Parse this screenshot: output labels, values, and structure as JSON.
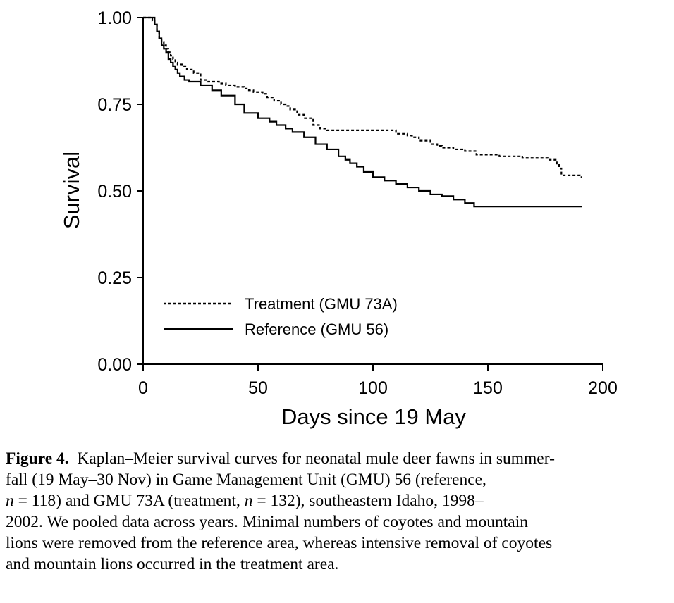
{
  "chart_data": {
    "type": "line",
    "step": true,
    "xlabel": "Days since 19 May",
    "ylabel": "Survival",
    "xlim": [
      0,
      200
    ],
    "ylim": [
      0,
      1
    ],
    "x_ticks": [
      0,
      50,
      100,
      150,
      200
    ],
    "x_tick_labels": [
      "0",
      "50",
      "100",
      "150",
      "200"
    ],
    "y_ticks": [
      0,
      0.25,
      0.5,
      0.75,
      1
    ],
    "y_tick_labels": [
      "0.00",
      "0.25",
      "0.50",
      "0.75",
      "1.00"
    ],
    "grid": false,
    "legend_position": "bottom-left",
    "series": [
      {
        "name": "Treatment (GMU 73A)",
        "style": "dashed",
        "color": "#000000",
        "x": [
          0,
          4,
          5,
          6,
          7,
          8,
          9,
          10,
          11,
          12,
          13,
          14,
          15,
          17,
          19,
          22,
          25,
          28,
          33,
          36,
          40,
          44,
          46,
          48,
          52,
          54,
          57,
          60,
          62,
          64,
          67,
          70,
          74,
          77,
          80,
          95,
          110,
          115,
          117,
          120,
          125,
          128,
          130,
          135,
          140,
          145,
          155,
          165,
          176,
          180,
          181,
          182,
          190,
          191
        ],
        "y": [
          1.0,
          0.99,
          0.98,
          0.96,
          0.94,
          0.93,
          0.92,
          0.91,
          0.9,
          0.89,
          0.88,
          0.87,
          0.865,
          0.86,
          0.85,
          0.84,
          0.82,
          0.815,
          0.81,
          0.805,
          0.8,
          0.795,
          0.79,
          0.785,
          0.78,
          0.77,
          0.76,
          0.75,
          0.745,
          0.735,
          0.72,
          0.71,
          0.69,
          0.68,
          0.675,
          0.675,
          0.665,
          0.66,
          0.655,
          0.645,
          0.635,
          0.63,
          0.625,
          0.62,
          0.615,
          0.605,
          0.6,
          0.595,
          0.59,
          0.575,
          0.565,
          0.545,
          0.54,
          0.54
        ]
      },
      {
        "name": "Reference (GMU 56)",
        "style": "solid",
        "color": "#000000",
        "x": [
          0,
          5,
          6,
          7,
          8,
          9,
          10,
          11,
          12,
          13,
          14,
          15,
          16,
          18,
          20,
          25,
          30,
          34,
          40,
          44,
          50,
          55,
          58,
          62,
          65,
          70,
          75,
          80,
          85,
          88,
          90,
          93,
          96,
          100,
          105,
          110,
          115,
          120,
          125,
          130,
          135,
          140,
          144,
          150,
          170,
          191
        ],
        "y": [
          1.0,
          0.98,
          0.96,
          0.94,
          0.92,
          0.91,
          0.9,
          0.88,
          0.87,
          0.86,
          0.85,
          0.84,
          0.83,
          0.82,
          0.815,
          0.805,
          0.79,
          0.775,
          0.75,
          0.725,
          0.71,
          0.7,
          0.69,
          0.68,
          0.67,
          0.655,
          0.635,
          0.62,
          0.6,
          0.59,
          0.58,
          0.57,
          0.555,
          0.54,
          0.53,
          0.52,
          0.51,
          0.5,
          0.49,
          0.485,
          0.475,
          0.465,
          0.455,
          0.455,
          0.455,
          0.455
        ]
      }
    ]
  },
  "caption": {
    "label": "Figure 4.",
    "line1": "Kaplan–Meier survival curves for neonatal mule deer fawns in summer-",
    "line2": "fall (19 May–30 Nov) in Game Management Unit (GMU) 56 (reference,",
    "line3_n1_var": "n",
    "line3_n1_rest": " = 118) and GMU 73A (treatment, ",
    "line3_n2_var": "n",
    "line3_n2_rest": " = 132), southeastern Idaho, 1998–",
    "line4": "2002. We pooled data across years. Minimal numbers of coyotes and mountain",
    "line5": "lions were removed from the reference area, whereas intensive removal of coyotes",
    "line6": "and mountain lions occurred in the treatment area."
  }
}
